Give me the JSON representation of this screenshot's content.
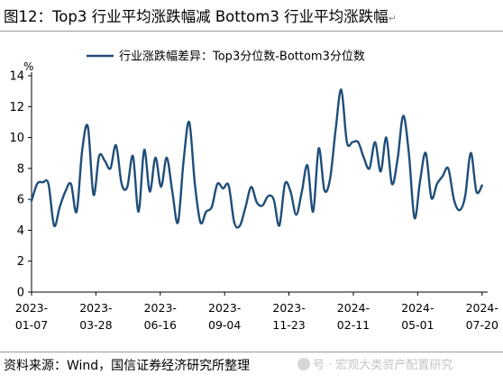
{
  "figure_title": "图12：Top3 行业平均涨跌幅减 Bottom3 行业平均涨跌幅",
  "source_text": "资料来源：Wind，国信证券经济研究所整理",
  "watermark_text": "号 · 宏观大类资产配置研究",
  "icons": {
    "watermark": "wechat-icon",
    "paragraph": "paragraph-mark-icon"
  },
  "colors": {
    "series": "#1f4e79",
    "axis": "#000000",
    "rule": "#9a9a9a"
  },
  "chart_data": {
    "type": "line",
    "title": "",
    "ylabel": "%",
    "xlabel": "",
    "ylim": [
      0,
      14
    ],
    "yticks": [
      0,
      2,
      4,
      6,
      8,
      10,
      12,
      14
    ],
    "x_start": "2023-01-07",
    "x_end": "2024-07-27",
    "xticks": [
      {
        "date": "2023-01-07",
        "label": [
          "2023-",
          "01-07"
        ]
      },
      {
        "date": "2023-03-28",
        "label": [
          "2023-",
          "03-28"
        ]
      },
      {
        "date": "2023-06-16",
        "label": [
          "2023-",
          "06-16"
        ]
      },
      {
        "date": "2023-09-04",
        "label": [
          "2023-",
          "09-04"
        ]
      },
      {
        "date": "2023-11-23",
        "label": [
          "2023-",
          "11-23"
        ]
      },
      {
        "date": "2024-02-11",
        "label": [
          "2024-",
          "02-11"
        ]
      },
      {
        "date": "2024-05-01",
        "label": [
          "2024-",
          "05-01"
        ]
      },
      {
        "date": "2024-07-20",
        "label": [
          "2024-",
          "07-20"
        ]
      }
    ],
    "grid": false,
    "legend_position": "top",
    "series": [
      {
        "name": "行业涨跌幅差异：Top3分位数-Bottom3分位数",
        "color": "#1f4e79",
        "points": [
          [
            "2023-01-07",
            5.9
          ],
          [
            "2023-01-14",
            7.0
          ],
          [
            "2023-01-21",
            7.1
          ],
          [
            "2023-01-28",
            7.0
          ],
          [
            "2023-02-04",
            4.3
          ],
          [
            "2023-02-11",
            5.5
          ],
          [
            "2023-02-18",
            6.5
          ],
          [
            "2023-02-25",
            7.0
          ],
          [
            "2023-03-04",
            5.2
          ],
          [
            "2023-03-11",
            9.2
          ],
          [
            "2023-03-18",
            10.7
          ],
          [
            "2023-03-25",
            6.3
          ],
          [
            "2023-04-01",
            8.8
          ],
          [
            "2023-04-08",
            8.5
          ],
          [
            "2023-04-15",
            8.0
          ],
          [
            "2023-04-22",
            9.5
          ],
          [
            "2023-04-29",
            7.0
          ],
          [
            "2023-05-06",
            6.8
          ],
          [
            "2023-05-13",
            8.8
          ],
          [
            "2023-05-20",
            5.2
          ],
          [
            "2023-05-27",
            9.2
          ],
          [
            "2023-06-03",
            6.5
          ],
          [
            "2023-06-10",
            8.7
          ],
          [
            "2023-06-17",
            6.8
          ],
          [
            "2023-06-24",
            8.7
          ],
          [
            "2023-07-01",
            6.5
          ],
          [
            "2023-07-08",
            4.5
          ],
          [
            "2023-07-15",
            8.5
          ],
          [
            "2023-07-22",
            11.0
          ],
          [
            "2023-07-29",
            7.0
          ],
          [
            "2023-08-05",
            4.5
          ],
          [
            "2023-08-12",
            5.2
          ],
          [
            "2023-08-19",
            5.5
          ],
          [
            "2023-08-26",
            7.0
          ],
          [
            "2023-09-02",
            6.7
          ],
          [
            "2023-09-09",
            6.9
          ],
          [
            "2023-09-16",
            4.5
          ],
          [
            "2023-09-23",
            4.3
          ],
          [
            "2023-09-30",
            5.5
          ],
          [
            "2023-10-07",
            6.8
          ],
          [
            "2023-10-14",
            5.8
          ],
          [
            "2023-10-21",
            5.6
          ],
          [
            "2023-10-28",
            6.2
          ],
          [
            "2023-11-04",
            6.0
          ],
          [
            "2023-11-11",
            4.3
          ],
          [
            "2023-11-18",
            7.0
          ],
          [
            "2023-11-25",
            6.5
          ],
          [
            "2023-12-02",
            5.0
          ],
          [
            "2023-12-09",
            6.5
          ],
          [
            "2023-12-16",
            8.2
          ],
          [
            "2023-12-23",
            5.2
          ],
          [
            "2023-12-30",
            9.3
          ],
          [
            "2024-01-06",
            6.6
          ],
          [
            "2024-01-13",
            7.3
          ],
          [
            "2024-01-20",
            10.5
          ],
          [
            "2024-01-27",
            13.1
          ],
          [
            "2024-02-03",
            9.7
          ],
          [
            "2024-02-10",
            9.7
          ],
          [
            "2024-02-17",
            9.7
          ],
          [
            "2024-02-24",
            8.7
          ],
          [
            "2024-03-02",
            8.0
          ],
          [
            "2024-03-09",
            9.7
          ],
          [
            "2024-03-16",
            7.8
          ],
          [
            "2024-03-23",
            10.0
          ],
          [
            "2024-03-30",
            7.0
          ],
          [
            "2024-04-06",
            8.6
          ],
          [
            "2024-04-13",
            11.4
          ],
          [
            "2024-04-20",
            9.0
          ],
          [
            "2024-04-27",
            4.8
          ],
          [
            "2024-05-04",
            7.2
          ],
          [
            "2024-05-11",
            9.0
          ],
          [
            "2024-05-18",
            6.1
          ],
          [
            "2024-05-25",
            7.0
          ],
          [
            "2024-06-01",
            7.5
          ],
          [
            "2024-06-08",
            8.0
          ],
          [
            "2024-06-15",
            6.0
          ],
          [
            "2024-06-22",
            5.3
          ],
          [
            "2024-06-29",
            6.2
          ],
          [
            "2024-07-06",
            9.0
          ],
          [
            "2024-07-13",
            6.5
          ],
          [
            "2024-07-20",
            6.9
          ]
        ]
      }
    ]
  }
}
